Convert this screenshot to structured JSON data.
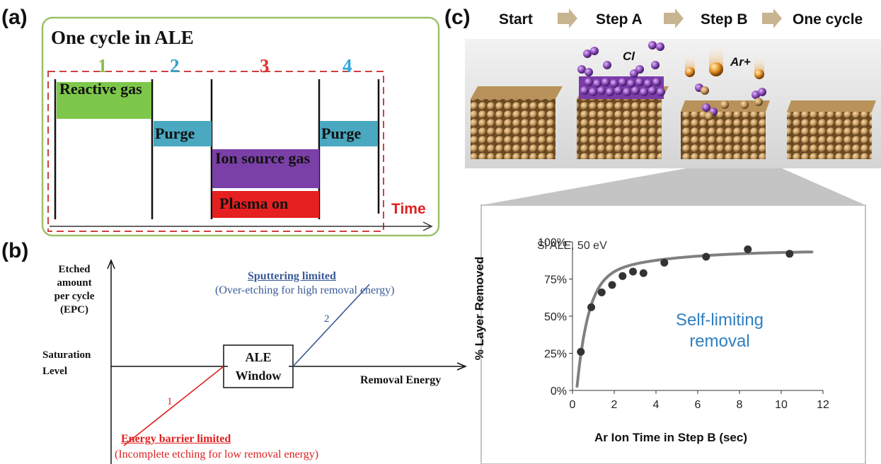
{
  "panel_a": {
    "label": "(a)",
    "title": "One cycle in ALE",
    "step_numbers": [
      {
        "text": "1",
        "color": "#8ac24a"
      },
      {
        "text": "2",
        "color": "#3aa0c8"
      },
      {
        "text": "3",
        "color": "#e03030"
      },
      {
        "text": "4",
        "color": "#2ea8d8"
      }
    ],
    "reactive_gas": "Reactive gas",
    "purge_1": "Purge",
    "purge_2": "Purge",
    "ion_source_gas": "Ion source gas",
    "plasma_on": "Plasma on",
    "time_label": "Time",
    "colors": {
      "border": "#9dc06a",
      "reactive": "#7dc84a",
      "purge": "#4aa8c0",
      "ion": "#7b3fa8",
      "plasma": "#e62020",
      "dash": "#d04040"
    }
  },
  "panel_b": {
    "label": "(b)",
    "y_title_lines": [
      "Etched",
      "amount",
      "per cycle",
      "(EPC)"
    ],
    "saturation_lines": [
      "Saturation",
      "Level"
    ],
    "window_lines": [
      "ALE",
      "Window"
    ],
    "x_title": "Removal Energy",
    "sputter_title": "Sputtering limited",
    "sputter_desc": "(Over-etching for high removal energy)",
    "energy_title": "Energy barrier limited",
    "energy_desc": "(Incomplete etching for low removal energy)",
    "line_1_label": "1",
    "line_2_label": "2",
    "colors": {
      "red": "#e02020",
      "blue": "#3a5a98"
    }
  },
  "panel_c": {
    "label": "(c)",
    "steps": [
      "Start",
      "Step A",
      "Step B",
      "One cycle"
    ],
    "cl_label": "Cl",
    "ar_label": "Ar+",
    "colors": {
      "arrow": "#c8b490",
      "si": "#c8a06a",
      "cl": "#9050c0",
      "ar": "#e0902a"
    }
  },
  "chart_data": {
    "type": "scatter",
    "annotation": "Si ALE, 50 eV",
    "inner_text_lines": [
      "Self-limiting",
      "removal"
    ],
    "xlabel": "Ar Ion Time in Step B (sec)",
    "ylabel": "% Layer Removed",
    "xlim": [
      0,
      12
    ],
    "ylim": [
      0,
      100
    ],
    "x_ticks": [
      "0",
      "2",
      "4",
      "6",
      "8",
      "10",
      "12"
    ],
    "y_ticks": [
      "0%",
      "25%",
      "50%",
      "75%",
      "100%"
    ],
    "points": [
      {
        "x": 0.4,
        "y": 26
      },
      {
        "x": 0.9,
        "y": 56
      },
      {
        "x": 1.4,
        "y": 66
      },
      {
        "x": 1.9,
        "y": 71
      },
      {
        "x": 2.4,
        "y": 77
      },
      {
        "x": 2.9,
        "y": 80
      },
      {
        "x": 3.4,
        "y": 79
      },
      {
        "x": 4.4,
        "y": 86
      },
      {
        "x": 6.4,
        "y": 90
      },
      {
        "x": 8.4,
        "y": 95
      },
      {
        "x": 10.4,
        "y": 92
      }
    ],
    "fit_curve": true,
    "colors": {
      "points": "#333333",
      "curve": "#808080",
      "inner_text": "#2f7fc0"
    }
  }
}
